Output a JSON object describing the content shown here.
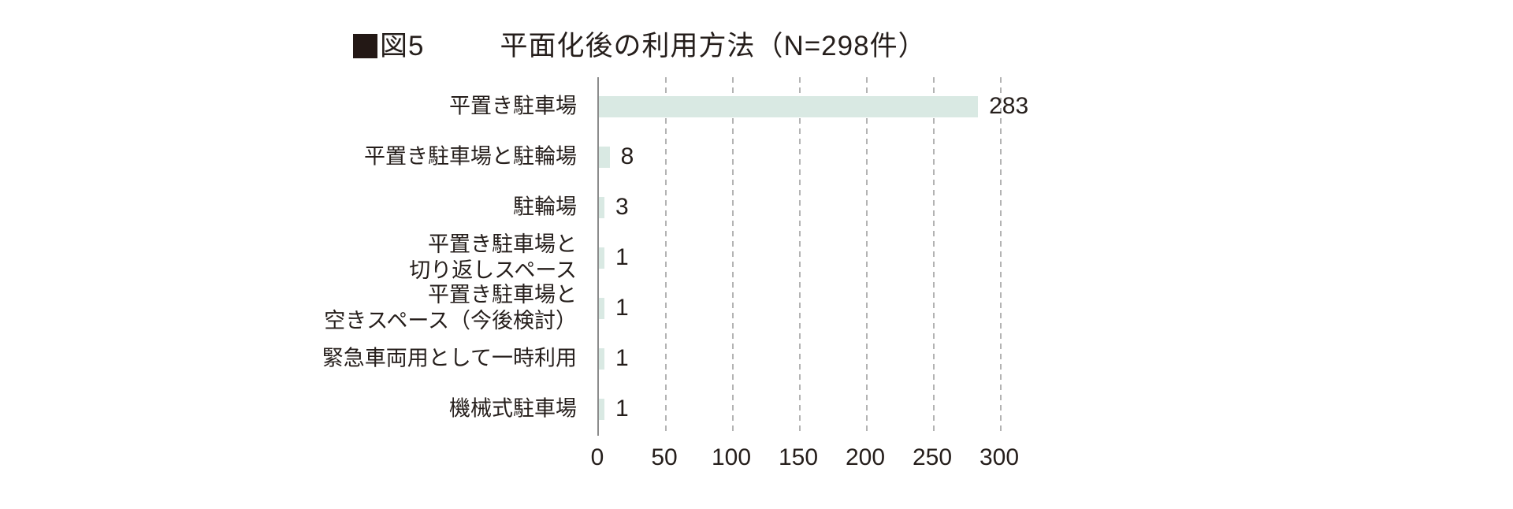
{
  "figure": {
    "marker_icon": "black-square",
    "label": "図5",
    "title": "平面化後の利用方法（N=298件）"
  },
  "chart_data": {
    "type": "bar",
    "orientation": "horizontal",
    "title": "平面化後の利用方法（N=298件）",
    "categories": [
      "平置き駐車場",
      "平置き駐車場と駐輪場",
      "駐輪場",
      "平置き駐車場と\n切り返しスペース",
      "平置き駐車場と\n空きスペース（今後検討）",
      "緊急車両用として一時利用",
      "機械式駐車場"
    ],
    "values": [
      283,
      8,
      3,
      1,
      1,
      1,
      1
    ],
    "value_labels": [
      "283",
      "8",
      "3",
      "1",
      "1",
      "1",
      "1"
    ],
    "xlim": [
      0,
      300
    ],
    "x_ticks": [
      0,
      50,
      100,
      150,
      200,
      250,
      300
    ],
    "grid": "vertical-dashed",
    "legend_position": "none",
    "colors": {
      "bar_fill": "#d9e9e3",
      "text": "#251e1b",
      "axis_line": "#8c8c8c",
      "gridline": "#b3b3b3"
    }
  }
}
